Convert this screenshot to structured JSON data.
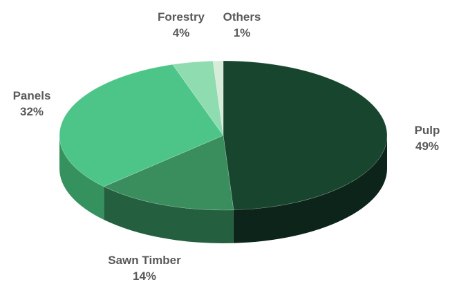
{
  "chart_data": {
    "type": "pie",
    "title": "",
    "slices": [
      {
        "label": "Pulp",
        "value": 49,
        "value_label": "49%",
        "color": "#17452d",
        "side_color": "#0c2419"
      },
      {
        "label": "Sawn Timber",
        "value": 14,
        "value_label": "14%",
        "color": "#3a8e5e",
        "side_color": "#24603f"
      },
      {
        "label": "Panels",
        "value": 32,
        "value_label": "32%",
        "color": "#4dc588",
        "side_color": "#35925f"
      },
      {
        "label": "Forestry",
        "value": 4,
        "value_label": "4%",
        "color": "#8fdcb1",
        "side_color": "#69b58b"
      },
      {
        "label": "Others",
        "value": 1,
        "value_label": "1%",
        "color": "#d6ecd9",
        "side_color": "#a9c4ad"
      }
    ],
    "legend": "none",
    "data_labels": "outside"
  }
}
